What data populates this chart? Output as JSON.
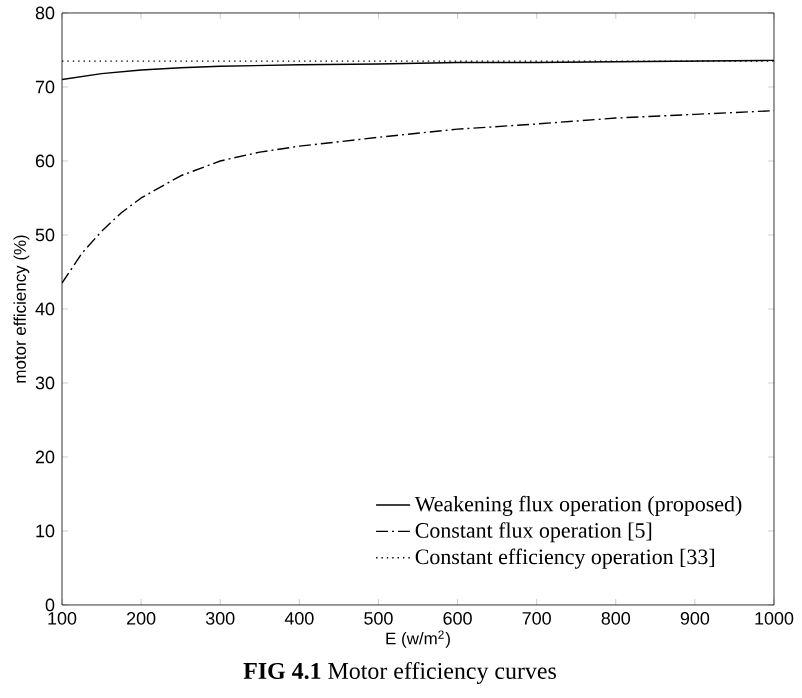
{
  "chart_data": {
    "type": "line",
    "xlabel": "E (w/m$^{2}$)",
    "ylabel": "motor efficiency   (%)",
    "xlim": [
      100,
      1000
    ],
    "ylim": [
      0,
      80
    ],
    "xticks": [
      100,
      200,
      300,
      400,
      500,
      600,
      700,
      800,
      900,
      1000
    ],
    "yticks": [
      0,
      10,
      20,
      30,
      40,
      50,
      60,
      70,
      80
    ],
    "grid": false,
    "legend": "bottom right",
    "marker": "none",
    "annotations": [
      "**FIG 4.1**  Motor efficiency curves"
    ],
    "series": [
      {
        "name": "Weakening flux operation (proposed)",
        "color": "#000000",
        "line_style": "solid",
        "x": [
          100,
          150,
          200,
          250,
          300,
          400,
          500,
          600,
          700,
          800,
          900,
          1000
        ],
        "values": [
          71,
          71.8,
          72.3,
          72.6,
          72.8,
          73,
          73.1,
          73.3,
          73.3,
          73.4,
          73.5,
          73.6
        ]
      },
      {
        "name": "Constant  flux operation [5]",
        "color": "#000000",
        "line_style": "dashdot",
        "x": [
          100,
          125,
          150,
          175,
          200,
          250,
          300,
          350,
          400,
          500,
          600,
          700,
          800,
          900,
          1000
        ],
        "values": [
          43.5,
          47.5,
          50.5,
          53,
          55,
          58,
          60,
          61.2,
          62,
          63.2,
          64.3,
          65,
          65.8,
          66.3,
          66.8
        ]
      },
      {
        "name": "Constant  efficiency operation [33]",
        "color": "#000000",
        "line_style": "dotted",
        "x": [
          100,
          1000
        ],
        "values": [
          73.5,
          73.5
        ]
      }
    ]
  }
}
